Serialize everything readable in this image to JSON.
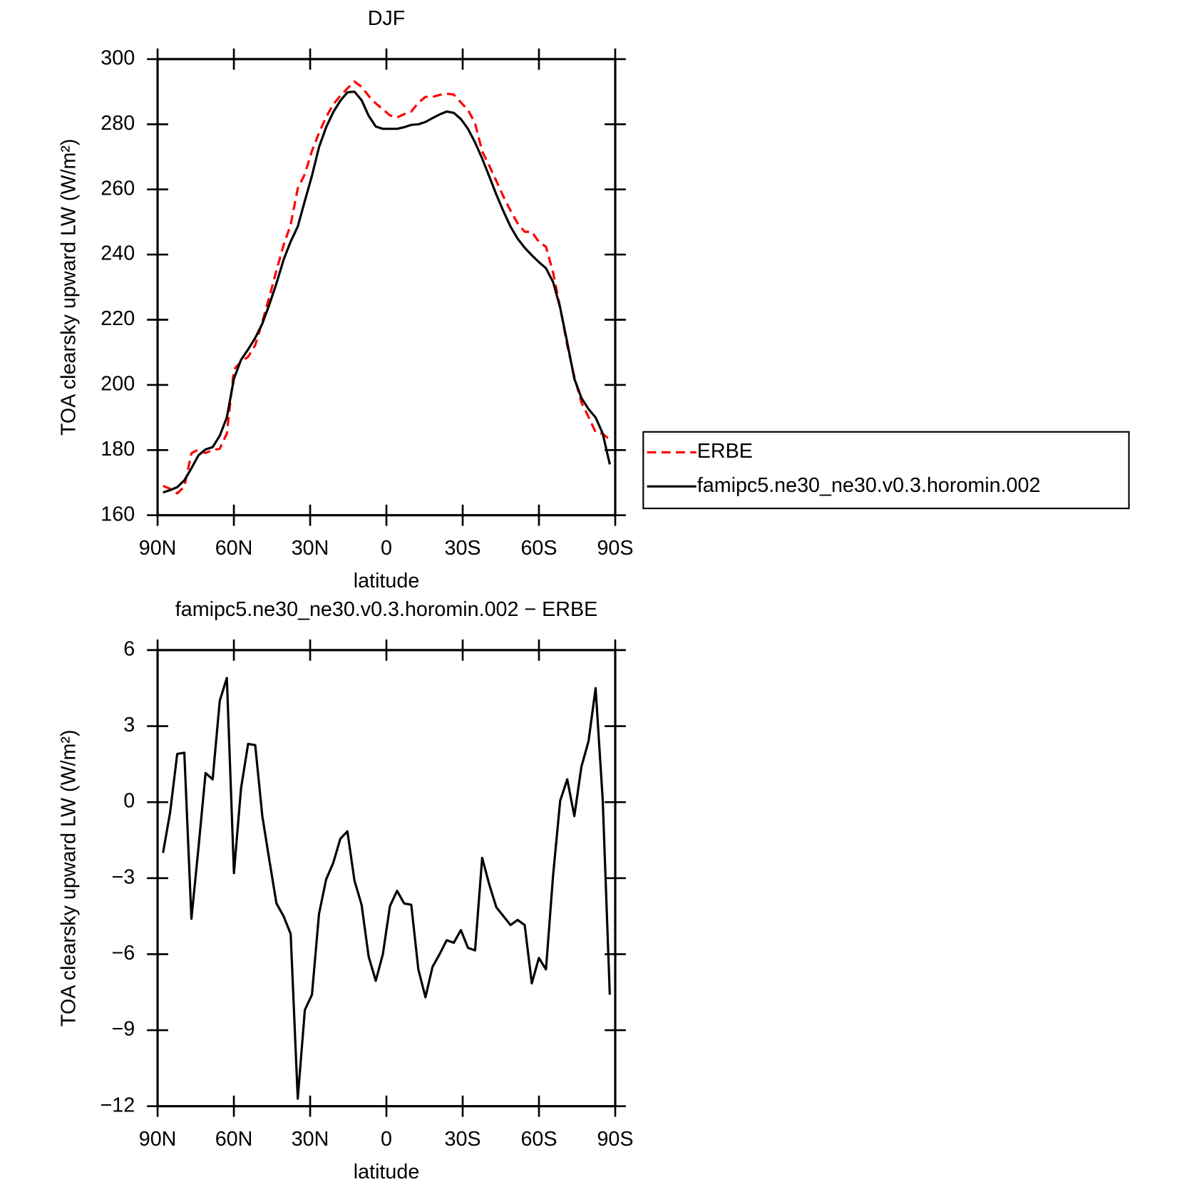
{
  "chart_data": [
    {
      "type": "line",
      "title": "DJF",
      "xlabel": "latitude",
      "ylabel": "TOA clearsky upward LW (W/m²)",
      "x": [
        87.86,
        85.07,
        82.28,
        79.49,
        76.7,
        73.92,
        71.13,
        68.34,
        65.55,
        62.76,
        59.97,
        57.18,
        54.39,
        51.6,
        48.81,
        46.03,
        43.24,
        40.45,
        37.66,
        34.87,
        32.08,
        29.29,
        26.5,
        23.71,
        20.92,
        18.14,
        15.35,
        12.56,
        9.77,
        6.98,
        4.19,
        1.4,
        -1.4,
        -4.19,
        -6.98,
        -9.77,
        -12.56,
        -15.35,
        -18.14,
        -20.92,
        -23.71,
        -26.5,
        -29.29,
        -32.08,
        -34.87,
        -37.66,
        -40.45,
        -43.24,
        -46.03,
        -48.81,
        -51.6,
        -54.39,
        -57.18,
        -59.97,
        -62.76,
        -65.55,
        -68.34,
        -71.13,
        -73.92,
        -76.7,
        -79.49,
        -82.28,
        -85.07,
        -87.86
      ],
      "series": [
        {
          "name": "ERBE",
          "color": "#ff0000",
          "line_style": "dashed",
          "values": [
            169.0,
            168.1,
            166.7,
            168.8,
            179.0,
            180.2,
            179.1,
            180.0,
            180.4,
            185.1,
            204.7,
            207.2,
            208.6,
            212.2,
            219.4,
            227.0,
            235.2,
            242.9,
            249.2,
            260.3,
            264.7,
            271.8,
            277.4,
            282.2,
            286.1,
            288.7,
            291.0,
            293.1,
            291.5,
            288.7,
            286.4,
            284.6,
            282.7,
            282.1,
            283.1,
            283.9,
            286.6,
            288.4,
            288.4,
            289.0,
            289.4,
            289.1,
            286.7,
            284.4,
            280.3,
            271.7,
            267.3,
            262.6,
            257.8,
            253.5,
            249.6,
            247.0,
            247.0,
            243.9,
            242.4,
            234.5,
            223.7,
            212.1,
            202.5,
            194.6,
            190.2,
            185.5,
            185.0,
            183.2
          ]
        },
        {
          "name": "famipc5.ne30_ne30.v0.3.horomin.002",
          "color": "#000000",
          "line_style": "solid",
          "values": [
            167.0,
            167.7,
            168.6,
            170.7,
            174.4,
            178.4,
            180.2,
            180.9,
            184.4,
            190.0,
            201.9,
            207.7,
            210.9,
            214.4,
            218.8,
            224.7,
            231.2,
            238.4,
            244.0,
            248.6,
            256.5,
            264.2,
            273.0,
            279.1,
            283.7,
            287.2,
            289.8,
            290.0,
            287.4,
            282.6,
            279.3,
            278.6,
            278.6,
            278.6,
            279.1,
            279.8,
            280.0,
            280.7,
            281.9,
            283.0,
            283.9,
            283.5,
            281.6,
            278.6,
            274.4,
            269.5,
            264.0,
            258.4,
            253.3,
            248.6,
            244.9,
            242.1,
            239.8,
            237.7,
            235.8,
            231.6,
            223.7,
            213.0,
            201.9,
            196.0,
            192.6,
            190.0,
            185.1,
            175.6
          ]
        }
      ],
      "xlim": [
        90,
        -90
      ],
      "xticks": [
        {
          "value": 90,
          "label": "90N"
        },
        {
          "value": 60,
          "label": "60N"
        },
        {
          "value": 30,
          "label": "30N"
        },
        0,
        {
          "value": -30,
          "label": "30S"
        },
        {
          "value": -60,
          "label": "60S"
        },
        {
          "value": -90,
          "label": "90S"
        }
      ],
      "ylim": [
        160,
        300
      ],
      "yticks": [
        160,
        180,
        200,
        220,
        240,
        260,
        280,
        300
      ],
      "legend": "right"
    },
    {
      "type": "line",
      "title": "famipc5.ne30_ne30.v0.3.horomin.002 − ERBE",
      "xlabel": "latitude",
      "ylabel": "TOA clearsky upward LW (W/m²)",
      "x": [
        87.86,
        85.07,
        82.28,
        79.49,
        76.7,
        73.92,
        71.13,
        68.34,
        65.55,
        62.76,
        59.97,
        57.18,
        54.39,
        51.6,
        48.81,
        46.03,
        43.24,
        40.45,
        37.66,
        34.87,
        32.08,
        29.29,
        26.5,
        23.71,
        20.92,
        18.14,
        15.35,
        12.56,
        9.77,
        6.98,
        4.19,
        1.4,
        -1.4,
        -4.19,
        -6.98,
        -9.77,
        -12.56,
        -15.35,
        -18.14,
        -20.92,
        -23.71,
        -26.5,
        -29.29,
        -32.08,
        -34.87,
        -37.66,
        -40.45,
        -43.24,
        -46.03,
        -48.81,
        -51.6,
        -54.39,
        -57.18,
        -59.97,
        -62.76,
        -65.55,
        -68.34,
        -71.13,
        -73.92,
        -76.7,
        -79.49,
        -82.28,
        -85.07,
        -87.86
      ],
      "values": [
        -2.0,
        -0.4,
        1.9,
        1.95,
        -4.6,
        -1.8,
        1.15,
        0.9,
        4.0,
        4.9,
        -2.8,
        0.55,
        2.3,
        2.25,
        -0.55,
        -2.3,
        -4.0,
        -4.5,
        -5.2,
        -11.7,
        -8.2,
        -7.6,
        -4.4,
        -3.05,
        -2.4,
        -1.45,
        -1.15,
        -3.1,
        -4.05,
        -6.1,
        -7.05,
        -6.0,
        -4.1,
        -3.5,
        -4.0,
        -4.05,
        -6.6,
        -7.7,
        -6.5,
        -6.0,
        -5.45,
        -5.55,
        -5.05,
        -5.75,
        -5.85,
        -2.2,
        -3.25,
        -4.15,
        -4.5,
        -4.85,
        -4.65,
        -4.85,
        -7.15,
        -6.15,
        -6.6,
        -2.9,
        0.05,
        0.9,
        -0.55,
        1.4,
        2.4,
        4.5,
        0.1,
        -7.6
      ],
      "color": "#000000",
      "line_style": "solid",
      "xlim": [
        90,
        -90
      ],
      "xticks": [
        {
          "value": 90,
          "label": "90N"
        },
        {
          "value": 60,
          "label": "60N"
        },
        {
          "value": 30,
          "label": "30N"
        },
        0,
        {
          "value": -30,
          "label": "30S"
        },
        {
          "value": -60,
          "label": "60S"
        },
        {
          "value": -90,
          "label": "90S"
        }
      ],
      "ylim": [
        -12,
        6
      ],
      "yticks": [
        {
          "value": -12,
          "label": "−12"
        },
        {
          "value": -9,
          "label": "−9"
        },
        {
          "value": -6,
          "label": "−6"
        },
        {
          "value": -3,
          "label": "−3"
        },
        0,
        3,
        6
      ]
    }
  ]
}
